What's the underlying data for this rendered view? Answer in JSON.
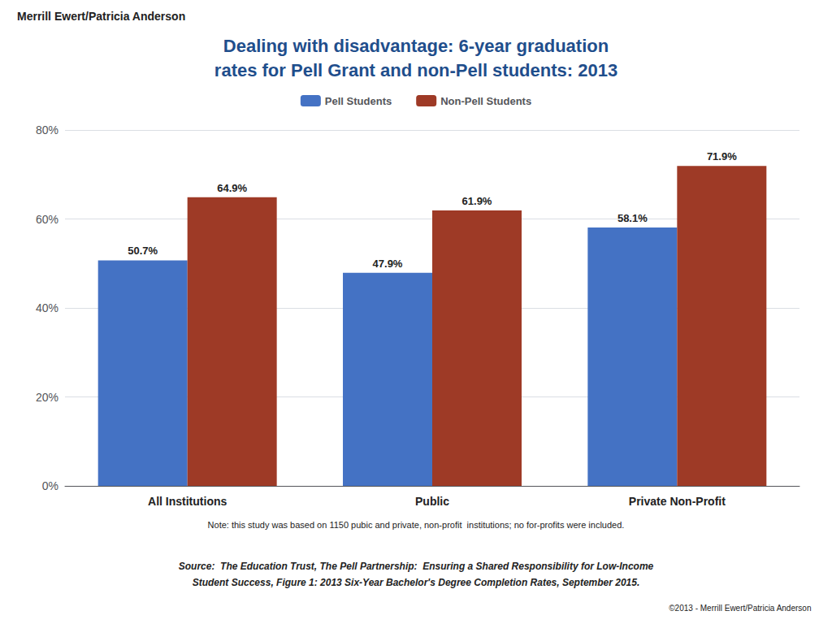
{
  "chart_data": {
    "type": "bar",
    "title": "Dealing with disadvantage: 6-year graduation\nrates for Pell Grant and non-Pell students: 2013",
    "annotations": [
      "Merrill Ewert/Patricia Anderson",
      "Note: this study was based on 1150 pubic and private, non-profit  institutions; no for-profits were included.",
      "Source:  The Education Trust, The Pell Partnership:  Ensuring a Shared Responsibility for Low-Income",
      "Student Success, Figure 1: 2013 Six-Year Bachelor's Degree Completion Rates, September 2015.",
      "©2013 - Merrill Ewert/Patricia Anderson"
    ],
    "categories": [
      "All Institutions",
      "Public",
      "Private Non-Profit"
    ],
    "series": [
      {
        "name": "Pell Students",
        "color": "#4472C4",
        "values": [
          50.7,
          47.9,
          58.1
        ],
        "value_labels": [
          "50.7%",
          "47.9%",
          "58.1%"
        ]
      },
      {
        "name": "Non-Pell Students",
        "color": "#9E3A26",
        "values": [
          64.9,
          61.9,
          71.9
        ],
        "value_labels": [
          "64.9%",
          "61.9%",
          "71.9%"
        ]
      }
    ],
    "ylim": [
      0,
      80
    ],
    "yticks": [
      {
        "value": 0,
        "label": "0%"
      },
      {
        "value": 20,
        "label": "20%"
      },
      {
        "value": 40,
        "label": "40%"
      },
      {
        "value": 60,
        "label": "60%"
      },
      {
        "value": 80,
        "label": "80%"
      }
    ],
    "grid": true,
    "legend": "top",
    "data_labels": true
  }
}
